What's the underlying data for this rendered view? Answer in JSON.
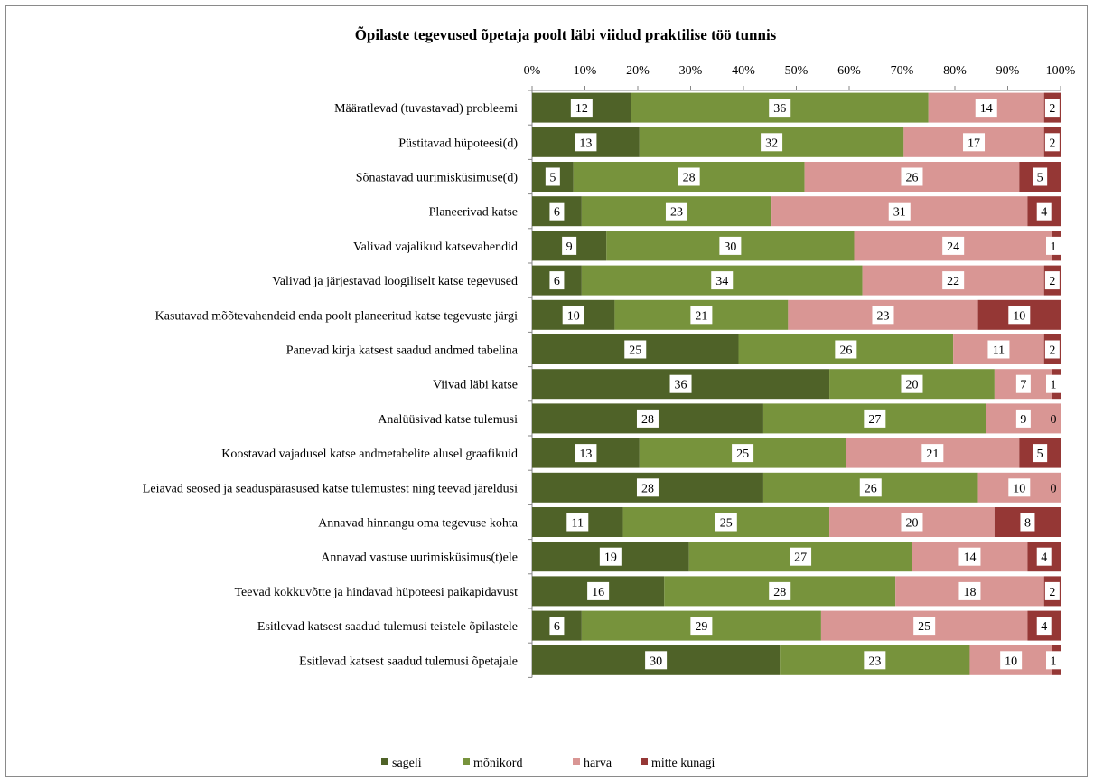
{
  "chart_data": {
    "type": "bar",
    "orientation": "horizontal",
    "stacked": "percent",
    "title": "Õpilaste tegevused õpetaja poolt läbi viidud praktilise töö tunnis",
    "x_axis_position": "top",
    "xlim": [
      0,
      100
    ],
    "x_tick_labels": [
      "0%",
      "10%",
      "20%",
      "30%",
      "40%",
      "50%",
      "60%",
      "70%",
      "80%",
      "90%",
      "100%"
    ],
    "grid": false,
    "legend_position": "bottom",
    "categories": [
      "Määratlevad (tuvastavad) probleemi",
      "Püstitavad hüpoteesi(d)",
      "Sõnastavad uurimisküsimuse(d)",
      "Planeerivad katse",
      "Valivad  vajalikud katsevahendid",
      "Valivad ja järjestavad loogiliselt  katse tegevused",
      "Kasutavad mõõtevahendeid enda poolt planeeritud katse tegevuste järgi",
      "Panevad kirja katsest saadud andmed tabelina",
      "Viivad läbi  katse",
      "Analüüsivad katse tulemusi",
      "Koostavad vajadusel katse andmetabelite alusel graafikuid",
      "Leiavad seosed ja seaduspärasused katse tulemustest ning  teevad järeldusi",
      "Annavad hinnangu oma tegevuse kohta",
      "Annavad vastuse uurimisküsimus(t)ele",
      "Teevad kokkuvõtte ja hindavad hüpoteesi paikapidavust",
      "Esitlevad katsest saadud tulemusi teistele õpilastele",
      "Esitlevad katsest saadud tulemusi õpetajale"
    ],
    "series": [
      {
        "name": "sageli",
        "color": "#4f6228",
        "values": [
          12,
          13,
          5,
          6,
          9,
          6,
          10,
          25,
          36,
          28,
          13,
          28,
          11,
          19,
          16,
          6,
          30
        ]
      },
      {
        "name": "mõnikord",
        "color": "#77933c",
        "values": [
          36,
          32,
          28,
          23,
          30,
          34,
          21,
          26,
          20,
          27,
          25,
          26,
          25,
          27,
          28,
          29,
          23
        ]
      },
      {
        "name": "harva",
        "color": "#d99694",
        "values": [
          14,
          17,
          26,
          31,
          24,
          22,
          23,
          11,
          7,
          9,
          21,
          10,
          20,
          14,
          18,
          25,
          10
        ]
      },
      {
        "name": "mitte kunagi",
        "color": "#953735",
        "values": [
          2,
          2,
          5,
          4,
          1,
          2,
          10,
          2,
          1,
          0,
          5,
          0,
          8,
          4,
          2,
          4,
          1
        ]
      }
    ]
  }
}
